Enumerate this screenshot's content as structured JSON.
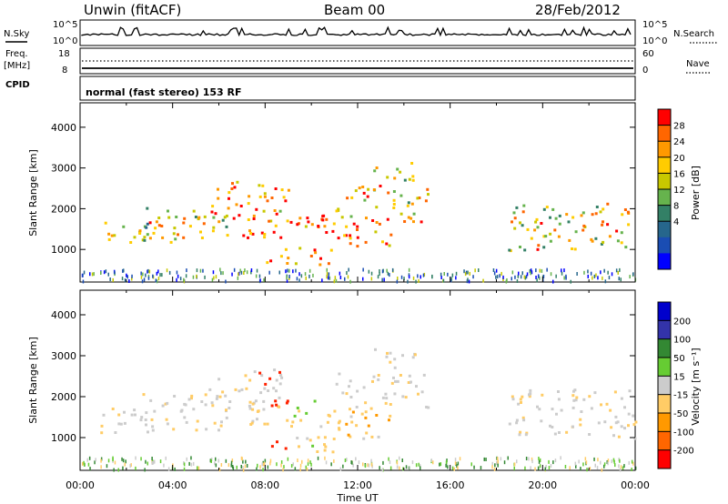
{
  "header": {
    "station": "Unwin (fitACF)",
    "beam": "Beam 00",
    "date": "28/Feb/2012"
  },
  "top_panels": {
    "nsky_label": "N.Sky",
    "nsky_ticks": [
      "10^5",
      "10^0"
    ],
    "nsearch_label": "N.Search",
    "freq_label_line1": "Freq.",
    "freq_label_line2": "[MHz]",
    "freq_ticks": [
      "18",
      "8"
    ],
    "nave_label": "Nave",
    "nave_ticks": [
      "60",
      "0"
    ],
    "cpid_label": "CPID",
    "cpid_text": "normal (fast stereo) 153 RF"
  },
  "chart_data": [
    {
      "type": "heatmap",
      "name": "power",
      "xlabel": "",
      "ylabel": "Slant Range [km]",
      "xlim": [
        0,
        24
      ],
      "ylim": [
        200,
        4600
      ],
      "yticks": [
        1000,
        2000,
        3000,
        4000
      ],
      "colorbar": {
        "label": "Power [dB]",
        "ticks": [
          "28",
          "24",
          "20",
          "16",
          "12",
          "8",
          "4"
        ],
        "colors": [
          "#ff0000",
          "#ff6600",
          "#ff9900",
          "#ffcc00",
          "#c8c800",
          "#66b34d",
          "#338066",
          "#26668c",
          "#1a4db3",
          "#0000ff"
        ]
      }
    },
    {
      "type": "heatmap",
      "name": "velocity",
      "xlabel": "Time UT",
      "ylabel": "Slant Range [km]",
      "xlim": [
        0,
        24
      ],
      "ylim": [
        200,
        4600
      ],
      "yticks": [
        1000,
        2000,
        3000,
        4000
      ],
      "xticks": [
        "00:00",
        "04:00",
        "08:00",
        "12:00",
        "16:00",
        "20:00",
        "00:00"
      ],
      "colorbar": {
        "label": "Velocity [m s⁻¹]",
        "ticks": [
          "200",
          "100",
          "50",
          "15",
          "-15",
          "-50",
          "-100",
          "-200"
        ],
        "colors": [
          "#0000cc",
          "#3333aa",
          "#338833",
          "#66cc33",
          "#cccccc",
          "#ffcc66",
          "#ff9900",
          "#ff6600",
          "#ff0000"
        ]
      }
    }
  ]
}
